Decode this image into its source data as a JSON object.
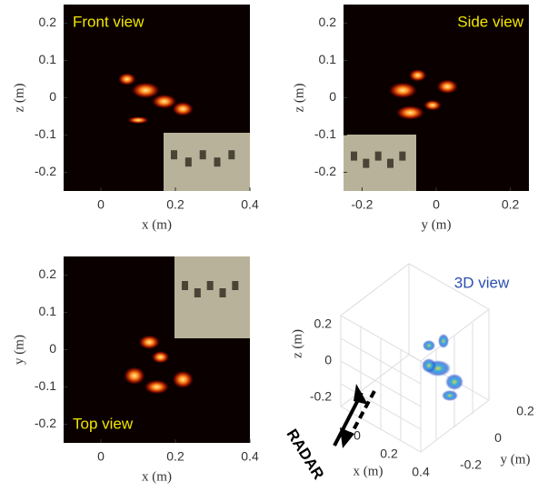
{
  "chart_data": [
    {
      "type": "image",
      "title": "Front view",
      "xlabel": "x (m)",
      "ylabel": "z (m)",
      "xlim": [
        -0.1,
        0.4
      ],
      "ylim": [
        -0.25,
        0.25
      ],
      "xticks": [
        0,
        0.2,
        0.4
      ],
      "yticks": [
        0.2,
        0.1,
        0,
        -0.1,
        -0.2
      ]
    },
    {
      "type": "image",
      "title": "Side view",
      "xlabel": "y (m)",
      "ylabel": "z (m)",
      "xlim": [
        -0.25,
        0.25
      ],
      "ylim": [
        -0.25,
        0.25
      ],
      "xticks": [
        -0.2,
        0,
        0.2
      ],
      "yticks": [
        0.2,
        0.1,
        0,
        -0.1,
        -0.2
      ]
    },
    {
      "type": "image",
      "title": "Top view",
      "xlabel": "x (m)",
      "ylabel": "y (m)",
      "xlim": [
        -0.1,
        0.4
      ],
      "ylim": [
        -0.25,
        0.25
      ],
      "xticks": [
        0,
        0.2,
        0.4
      ],
      "yticks": [
        0.2,
        0.1,
        0,
        -0.1,
        -0.2
      ]
    },
    {
      "type": "3d",
      "title": "3D view",
      "xlabel": "x (m)",
      "ylabel": "y (m)",
      "zlabel": "z (m)",
      "annotation": "RADAR",
      "xlim": [
        -0.1,
        0.4
      ],
      "ylim": [
        -0.25,
        0.25
      ],
      "zlim": [
        -0.25,
        0.25
      ],
      "xticks": [
        0,
        0.2,
        0.4
      ],
      "yticks": [
        -0.2,
        0,
        0.2
      ],
      "zticks": [
        -0.2,
        0,
        0.2
      ]
    }
  ]
}
